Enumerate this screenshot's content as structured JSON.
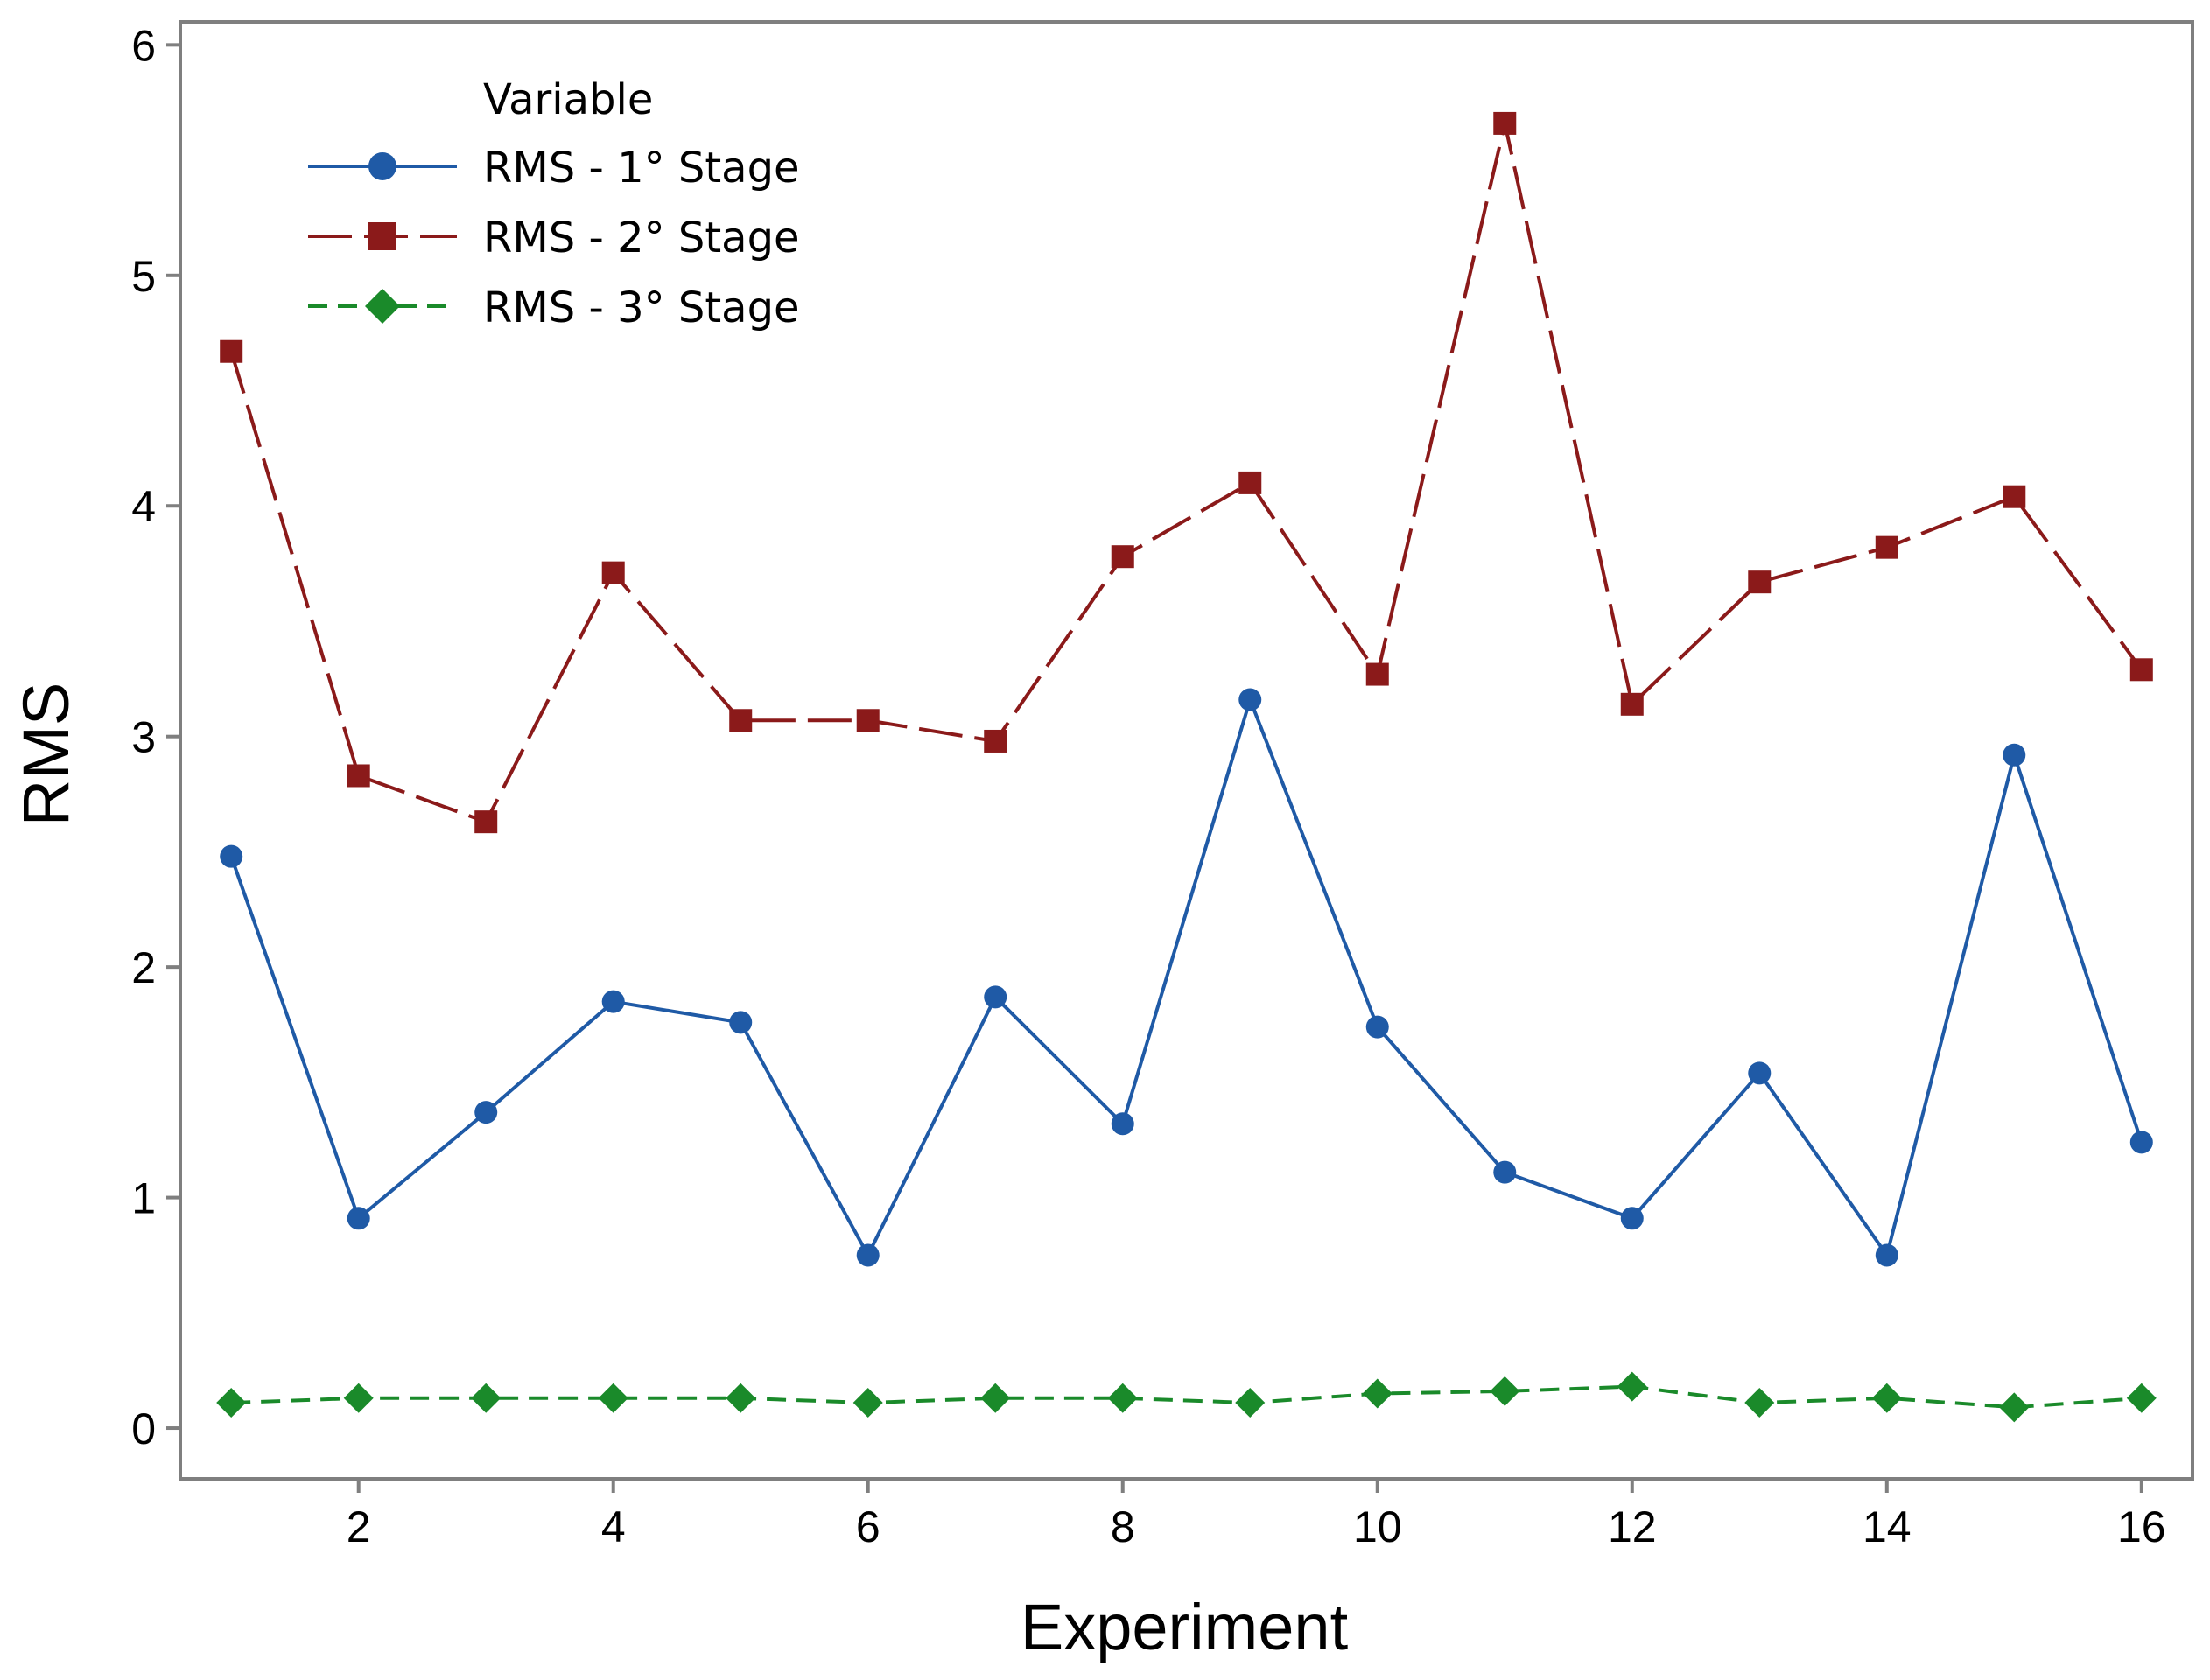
{
  "chart_data": {
    "type": "line",
    "title": "",
    "xlabel": "Experiment",
    "ylabel": "RMS",
    "xlim": [
      0.6,
      16.4
    ],
    "ylim": [
      -0.22,
      6.1
    ],
    "xticks": [
      2,
      4,
      6,
      8,
      10,
      12,
      14,
      16
    ],
    "yticks": [
      0,
      1,
      2,
      3,
      4,
      5,
      6
    ],
    "grid": false,
    "legend": {
      "title": "Variable",
      "placement": "top-left"
    },
    "x": [
      1,
      2,
      3,
      4,
      5,
      6,
      7,
      8,
      9,
      10,
      11,
      12,
      13,
      14,
      15,
      16
    ],
    "series": [
      {
        "name": "RMS - 1° Stage",
        "color": "#1f5aa6",
        "marker": "circle",
        "line": "solid",
        "values": [
          2.48,
          0.91,
          1.37,
          1.85,
          1.76,
          0.75,
          1.87,
          1.32,
          3.16,
          1.74,
          1.11,
          0.91,
          1.54,
          0.75,
          2.92,
          1.24
        ]
      },
      {
        "name": "RMS - 2° Stage",
        "color": "#8b1a1a",
        "marker": "square",
        "line": "longdash",
        "values": [
          4.67,
          2.83,
          2.63,
          3.71,
          3.07,
          3.07,
          2.98,
          3.78,
          4.1,
          3.27,
          5.66,
          3.14,
          3.67,
          3.82,
          4.04,
          3.29
        ]
      },
      {
        "name": "RMS - 3° Stage",
        "color": "#1a8a2a",
        "marker": "diamond",
        "line": "dash",
        "values": [
          0.11,
          0.13,
          0.13,
          0.13,
          0.13,
          0.11,
          0.13,
          0.13,
          0.11,
          0.15,
          0.16,
          0.18,
          0.11,
          0.13,
          0.09,
          0.13
        ]
      }
    ]
  }
}
